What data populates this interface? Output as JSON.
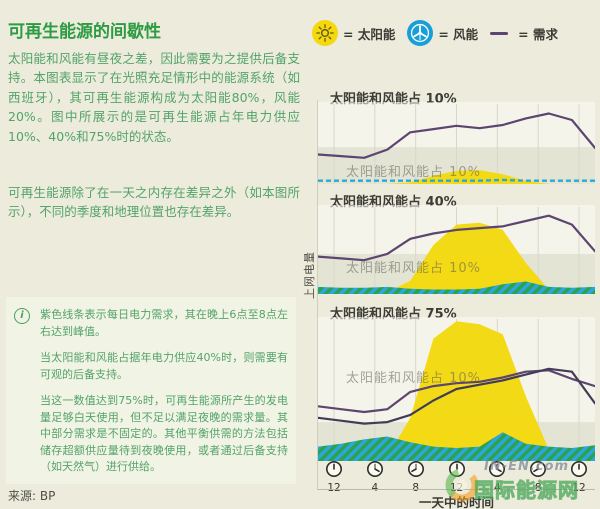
{
  "page": {
    "title": "可再生能源的间歇性",
    "paragraphs": [
      "太阳能和风能有昼夜之差，因此需要为之提供后备支持。本图表显示了在光照充足情形中的能源系统（如西班牙），其可再生能源构成为太阳能80%，风能20%。图中所展示的是可再生能源占年电力供应10%、40%和75%时的状态。",
      "可再生能源除了在一天之内存在差异之外（如本图所示），不同的季度和地理位置也存在差异。"
    ],
    "source": "来源: BP"
  },
  "info_box": {
    "icon": "i",
    "items": [
      "紫色线条表示每日电力需求，其在晚上6点至8点左右达到峰值。",
      "当太阳能和风能占据年电力供应40%时，则需要有可观的后备支持。",
      "当这一数值达到75%时，可再生能源所产生的发电量足够白天使用，但不足以满足夜晚的需求量。其中部分需求是不固定的。其他平衡供需的方法包括储存超额供应量待到夜晚使用，或者通过后备支持（如天然气）进行供给。"
    ]
  },
  "legend": {
    "solar": {
      "label": "= 太阳能",
      "color": "#f3d90e",
      "icon": "sun-icon"
    },
    "wind": {
      "label": "= 风能",
      "color": "#189fd8",
      "icon": "wind-turbine-icon"
    },
    "demand": {
      "label": "= 需求",
      "color": "#5c4570",
      "icon": "line-sample"
    }
  },
  "watermark": {
    "site": "IN-EN.com",
    "name": "国际能源网"
  },
  "chart_data": {
    "type": "area",
    "description": "三幅叠放的日内发电/需求曲线图（数值为面板高度的相对百分比，0-100）",
    "x_hours": [
      0,
      2,
      4,
      6,
      8,
      10,
      12,
      14,
      16,
      18,
      20,
      22,
      24
    ],
    "x_tick_labels": [
      "12",
      "4",
      "8",
      "12",
      "4",
      "8",
      "12"
    ],
    "x_label": "一天中的时间",
    "y_label": "上网电量",
    "grid": true,
    "panels": [
      {
        "title": "太阳能和风能占 10%",
        "ghost_label": "太阳能和风能占  10%",
        "shade_band": 0.45,
        "series": [
          {
            "name": "需求",
            "kind": "line",
            "color": "#5c4570",
            "values": [
              36,
              34,
              32,
              42,
              63,
              67,
              71,
              68,
              72,
              80,
              86,
              78,
              44
            ]
          },
          {
            "name": "太阳能",
            "kind": "area",
            "color": "#f3d90e",
            "values": [
              0,
              0,
              0,
              0,
              2,
              10,
              16,
              17,
              12,
              4,
              0,
              0,
              0
            ]
          },
          {
            "name": "风能",
            "kind": "dashed-line",
            "color": "#29a8dc",
            "values": [
              4,
              4,
              4,
              4,
              4,
              4,
              4,
              4,
              5,
              4,
              4,
              4,
              4
            ]
          }
        ]
      },
      {
        "title": "太阳能和风能占 40%",
        "ghost_label": "太阳能和风能占  10%",
        "shade_band": 0.45,
        "series": [
          {
            "name": "需求",
            "kind": "line",
            "color": "#5c4570",
            "values": [
              42,
              40,
              38,
              45,
              62,
              68,
              72,
              74,
              76,
              82,
              88,
              78,
              48
            ]
          },
          {
            "name": "太阳能",
            "kind": "area",
            "color": "#f3d90e",
            "values": [
              0,
              0,
              0,
              2,
              15,
              55,
              78,
              80,
              72,
              35,
              5,
              0,
              0
            ]
          },
          {
            "name": "风能",
            "kind": "area-hatch",
            "color": "#29a8dc",
            "color2": "#2ea04e",
            "values": [
              8,
              7,
              7,
              8,
              6,
              5,
              5,
              6,
              11,
              14,
              8,
              7,
              8
            ]
          }
        ]
      },
      {
        "title": "太阳能和风能占 75%",
        "ghost_label": "太阳能和风能占  10%",
        "shade_band": 0.27,
        "series": [
          {
            "name": "需求",
            "kind": "line",
            "color": "#5c4570",
            "values": [
              38,
              36,
              34,
              36,
              48,
              52,
              54,
              55,
              58,
              62,
              63,
              57,
              52
            ]
          },
          {
            "name": "需求(重影)",
            "kind": "line",
            "color": "#433c58",
            "values": [
              30,
              28,
              26,
              27,
              32,
              42,
              50,
              53,
              56,
              60,
              64,
              62,
              40
            ]
          },
          {
            "name": "太阳能",
            "kind": "area",
            "color": "#f3d90e",
            "values": [
              0,
              0,
              0,
              3,
              30,
              85,
              97,
              95,
              88,
              45,
              8,
              0,
              0
            ]
          },
          {
            "name": "风能",
            "kind": "area-hatch",
            "color": "#29a8dc",
            "color2": "#2ea04e",
            "values": [
              10,
              12,
              15,
              17,
              13,
              10,
              9,
              10,
              20,
              12,
              10,
              9,
              11
            ]
          }
        ]
      }
    ]
  }
}
